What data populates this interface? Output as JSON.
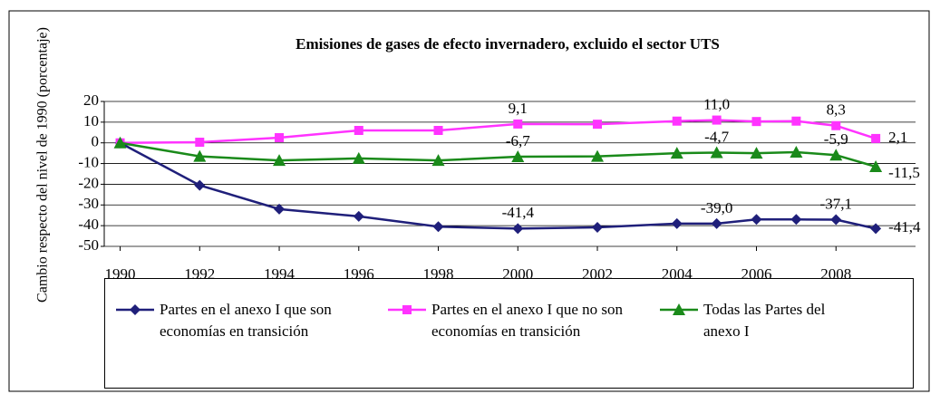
{
  "chart_data": {
    "type": "line",
    "title": "Emisiones de gases de efecto invernadero, excluido el sector UTS",
    "y_label": "Cambio respecto del nivel de 1990 (porcentaje)",
    "x": [
      1990,
      1992,
      1994,
      1996,
      1998,
      2000,
      2002,
      2004,
      2005,
      2006,
      2007,
      2008,
      2009
    ],
    "xlim": [
      1989.6,
      2010
    ],
    "xticks": [
      1990,
      1992,
      1994,
      1996,
      1998,
      2000,
      2002,
      2004,
      2006,
      2008
    ],
    "ylim": [
      -50,
      20
    ],
    "yticks": [
      20,
      10,
      0,
      -10,
      -20,
      -30,
      -40,
      -50
    ],
    "grid": true,
    "legend": "bottom",
    "series": [
      {
        "name": "Partes en el anexo I que son economías en transición",
        "color": "#1f1f7a",
        "marker": "diamond",
        "values": [
          0,
          -20.5,
          -32,
          -35.5,
          -40.5,
          -41.4,
          -40.8,
          -39,
          -39.0,
          -37,
          -37,
          -37.1,
          -41.4
        ],
        "value_labels": [
          null,
          null,
          null,
          null,
          null,
          "-41,4",
          null,
          null,
          "-39,0",
          null,
          null,
          "-37,1",
          "-41,4"
        ]
      },
      {
        "name": "Partes en el anexo I que no son economías en transición",
        "color": "#ff33ff",
        "marker": "square",
        "values": [
          0,
          0.3,
          2.5,
          6,
          6,
          9.1,
          9,
          10.5,
          11.0,
          10.3,
          10.5,
          8.3,
          2.1
        ],
        "value_labels": [
          null,
          null,
          null,
          null,
          null,
          "9,1",
          null,
          null,
          "11,0",
          null,
          null,
          "8,3",
          "2,1"
        ]
      },
      {
        "name": "Todas las Partes del anexo I",
        "color": "#1a8a1a",
        "marker": "triangle",
        "values": [
          0,
          -6.5,
          -8.5,
          -7.5,
          -8.5,
          -6.7,
          -6.5,
          -5,
          -4.7,
          -5,
          -4.5,
          -5.9,
          -11.5
        ],
        "value_labels": [
          null,
          null,
          null,
          null,
          null,
          "-6,7",
          null,
          null,
          "-4,7",
          null,
          null,
          "-5,9",
          "-11,5"
        ]
      }
    ]
  }
}
